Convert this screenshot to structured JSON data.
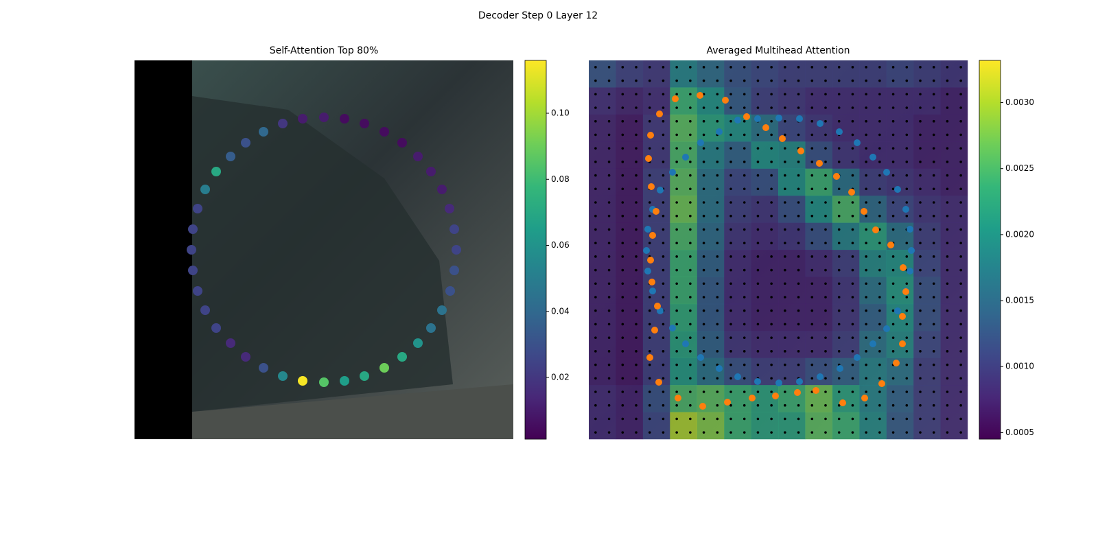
{
  "title": "Decoder Step 0 Layer 12",
  "chart_data": [
    {
      "type": "scatter",
      "title": "Self-Attention Top 80%",
      "colormap": "viridis",
      "xlim": [
        0,
        552
      ],
      "ylim": [
        552,
        0
      ],
      "x": [
        245,
        276,
        306,
        335,
        364,
        390,
        413,
        432,
        448,
        460,
        466,
        469,
        466,
        459,
        448,
        432,
        413,
        390,
        364,
        335,
        306,
        276,
        245,
        216,
        188,
        162,
        140,
        119,
        103,
        92,
        85,
        83,
        85,
        92,
        103,
        119,
        140,
        162,
        188,
        216
      ],
      "y": [
        467,
        469,
        467,
        460,
        448,
        432,
        412,
        390,
        364,
        336,
        306,
        276,
        246,
        216,
        188,
        162,
        140,
        120,
        104,
        92,
        85,
        83,
        85,
        92,
        104,
        120,
        140,
        162,
        188,
        216,
        246,
        276,
        306,
        336,
        364,
        390,
        412,
        432,
        448,
        460
      ],
      "values": [
        0.115,
        0.085,
        0.065,
        0.07,
        0.09,
        0.07,
        0.06,
        0.045,
        0.045,
        0.03,
        0.03,
        0.025,
        0.025,
        0.015,
        0.01,
        0.01,
        0.01,
        0.005,
        0.005,
        0.005,
        0.005,
        0.01,
        0.01,
        0.02,
        0.04,
        0.03,
        0.035,
        0.07,
        0.05,
        0.025,
        0.025,
        0.025,
        0.025,
        0.025,
        0.025,
        0.025,
        0.015,
        0.015,
        0.03,
        0.055
      ],
      "colorbar": {
        "lim": [
          0.0013,
          0.116
        ],
        "ticks": [
          0.02,
          0.04,
          0.06,
          0.08,
          {
            "value": 0.1,
            "label": "0.10"
          }
        ]
      }
    },
    {
      "type": "heatmap",
      "title": "Averaged Multihead Attention",
      "colormap": "viridis",
      "xlim": [
        0,
        552
      ],
      "ylim": [
        552,
        0
      ],
      "z": [
        [
          0.0012,
          0.001,
          0.0009,
          0.0018,
          0.0015,
          0.0012,
          0.0011,
          0.001,
          0.001,
          0.001,
          0.001,
          0.0011,
          0.001,
          0.0009
        ],
        [
          0.0008,
          0.0007,
          0.0008,
          0.0024,
          0.002,
          0.0013,
          0.001,
          0.0009,
          0.0008,
          0.0008,
          0.0008,
          0.0008,
          0.0008,
          0.0007
        ],
        [
          0.0007,
          0.0006,
          0.0009,
          0.0026,
          0.0022,
          0.002,
          0.0016,
          0.0011,
          0.0009,
          0.0008,
          0.0008,
          0.0008,
          0.0007,
          0.0007
        ],
        [
          0.0007,
          0.0006,
          0.0009,
          0.0025,
          0.0018,
          0.0014,
          0.002,
          0.0019,
          0.0012,
          0.0009,
          0.0008,
          0.0008,
          0.0007,
          0.0007
        ],
        [
          0.0007,
          0.0006,
          0.001,
          0.0026,
          0.0016,
          0.0011,
          0.0012,
          0.002,
          0.0024,
          0.0016,
          0.001,
          0.0009,
          0.0008,
          0.0007
        ],
        [
          0.0007,
          0.0006,
          0.001,
          0.0027,
          0.0016,
          0.001,
          0.0009,
          0.0012,
          0.002,
          0.0025,
          0.0015,
          0.0011,
          0.0009,
          0.0008
        ],
        [
          0.0007,
          0.0006,
          0.001,
          0.0025,
          0.0015,
          0.0009,
          0.0008,
          0.0009,
          0.0012,
          0.0018,
          0.0022,
          0.0016,
          0.001,
          0.0008
        ],
        [
          0.0007,
          0.0006,
          0.001,
          0.0024,
          0.0014,
          0.0008,
          0.0007,
          0.0007,
          0.0008,
          0.001,
          0.0019,
          0.002,
          0.0011,
          0.0008
        ],
        [
          0.0007,
          0.0006,
          0.001,
          0.0024,
          0.0013,
          0.0008,
          0.0007,
          0.0007,
          0.0007,
          0.0009,
          0.0016,
          0.0021,
          0.0012,
          0.0008
        ],
        [
          0.0007,
          0.0006,
          0.001,
          0.0023,
          0.0013,
          0.0008,
          0.0007,
          0.0007,
          0.0007,
          0.0009,
          0.0014,
          0.002,
          0.0012,
          0.0008
        ],
        [
          0.0007,
          0.0006,
          0.001,
          0.0022,
          0.0014,
          0.0009,
          0.0008,
          0.0008,
          0.0008,
          0.001,
          0.0016,
          0.0019,
          0.0011,
          0.0008
        ],
        [
          0.0007,
          0.0006,
          0.001,
          0.0021,
          0.0016,
          0.0012,
          0.001,
          0.001,
          0.0012,
          0.0014,
          0.0018,
          0.0016,
          0.001,
          0.0008
        ],
        [
          0.0008,
          0.0007,
          0.0012,
          0.0025,
          0.0026,
          0.0024,
          0.0022,
          0.0024,
          0.0027,
          0.0022,
          0.0018,
          0.0014,
          0.001,
          0.0008
        ],
        [
          0.0008,
          0.0007,
          0.0011,
          0.003,
          0.0028,
          0.0024,
          0.0022,
          0.0022,
          0.0026,
          0.0024,
          0.0019,
          0.0013,
          0.001,
          0.0008
        ]
      ],
      "series": [
        {
          "color": "#1f77b4",
          "x": [
            217,
            246,
            277,
            307,
            337,
            365,
            391,
            414,
            434,
            450,
            462,
            468,
            470,
            468,
            462,
            450,
            434,
            414,
            391,
            366,
            337,
            307,
            277,
            246,
            217,
            190,
            163,
            141,
            122,
            104,
            93,
            86,
            84,
            86,
            93,
            104,
            122,
            141,
            163,
            190
          ],
          "y": [
            87,
            85,
            84,
            85,
            92,
            104,
            120,
            141,
            163,
            188,
            217,
            246,
            277,
            307,
            336,
            365,
            391,
            413,
            433,
            449,
            461,
            468,
            470,
            468,
            461,
            449,
            433,
            413,
            390,
            365,
            336,
            307,
            277,
            246,
            217,
            189,
            163,
            141,
            120,
            104
          ]
        },
        {
          "color": "#ff7f0e",
          "x": [
            162,
            199,
            126,
            103,
            90,
            87,
            91,
            98,
            93,
            90,
            92,
            100,
            96,
            89,
            102,
            130,
            166,
            202,
            238,
            272,
            304,
            331,
            370,
            402,
            427,
            448,
            457,
            457,
            462,
            458,
            440,
            418,
            401,
            383,
            361,
            336,
            309,
            282,
            258,
            230
          ],
          "y": [
            51,
            58,
            56,
            78,
            109,
            143,
            184,
            220,
            255,
            291,
            323,
            358,
            393,
            433,
            469,
            492,
            504,
            498,
            492,
            489,
            484,
            481,
            499,
            492,
            471,
            441,
            413,
            373,
            337,
            302,
            269,
            247,
            220,
            192,
            169,
            150,
            132,
            114,
            98,
            82
          ]
        }
      ],
      "colorbar": {
        "lim": [
          0.00045,
          0.00332
        ],
        "ticks": [
          0.0005,
          {
            "value": 0.001,
            "label": "0.0010"
          },
          0.0015,
          {
            "value": 0.002,
            "label": "0.0020"
          },
          0.0025,
          {
            "value": 0.003,
            "label": "0.0030"
          }
        ]
      }
    }
  ]
}
